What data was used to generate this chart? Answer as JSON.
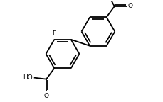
{
  "bg_color": "#ffffff",
  "bond_color": "#000000",
  "text_color": "#000000",
  "line_width": 1.3,
  "font_size": 6.5,
  "fig_width": 2.29,
  "fig_height": 1.44,
  "dpi": 100,
  "r1cx": 3.7,
  "r1cy": 3.3,
  "r1r": 1.15,
  "ao1": 0,
  "r2cx": 6.15,
  "r2cy": 4.85,
  "r2r": 1.15,
  "ao2": 0,
  "xlim": [
    0,
    10
  ],
  "ylim": [
    0,
    7
  ]
}
